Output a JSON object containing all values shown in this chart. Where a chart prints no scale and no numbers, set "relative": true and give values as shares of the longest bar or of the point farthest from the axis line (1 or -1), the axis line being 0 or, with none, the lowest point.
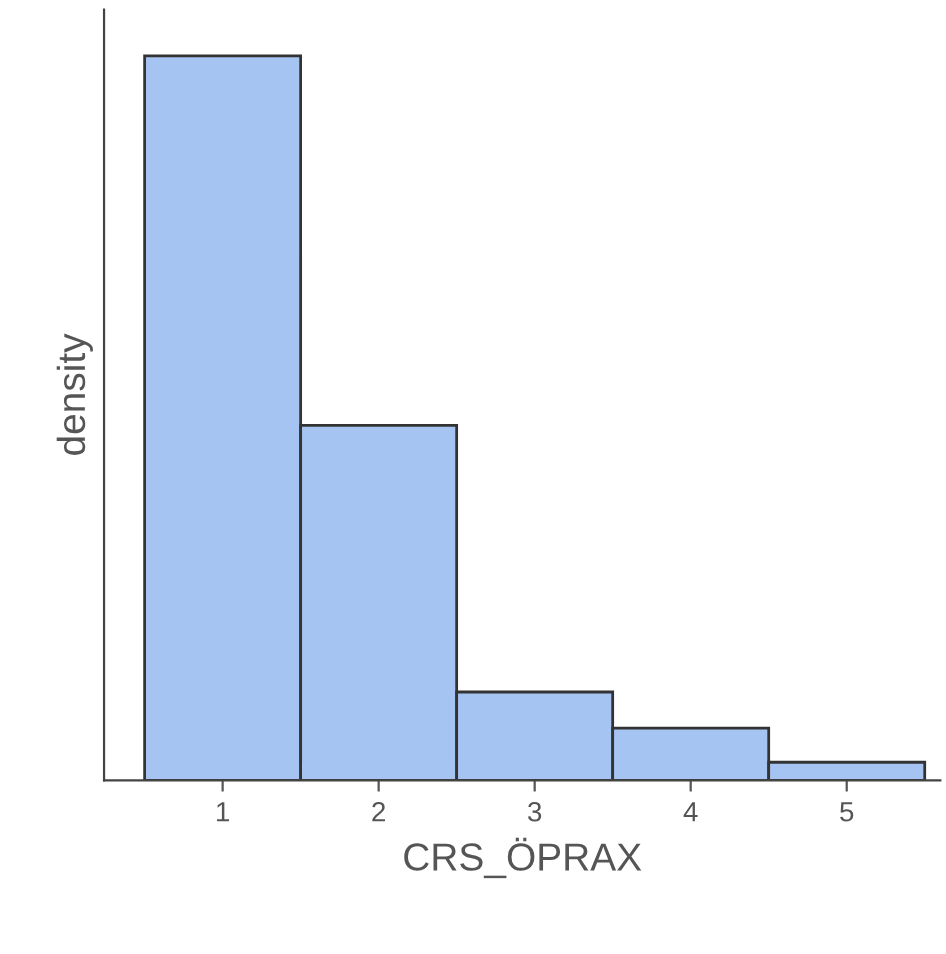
{
  "chart_data": {
    "type": "bar",
    "xlabel": "CRS_ÖPRAX",
    "ylabel": "density",
    "relative": true,
    "categories": [
      "1",
      "2",
      "3",
      "4",
      "5"
    ],
    "values": [
      1,
      0.49,
      0.122,
      0.072,
      0.025
    ],
    "color": "#a6c4f2",
    "grid": false
  }
}
